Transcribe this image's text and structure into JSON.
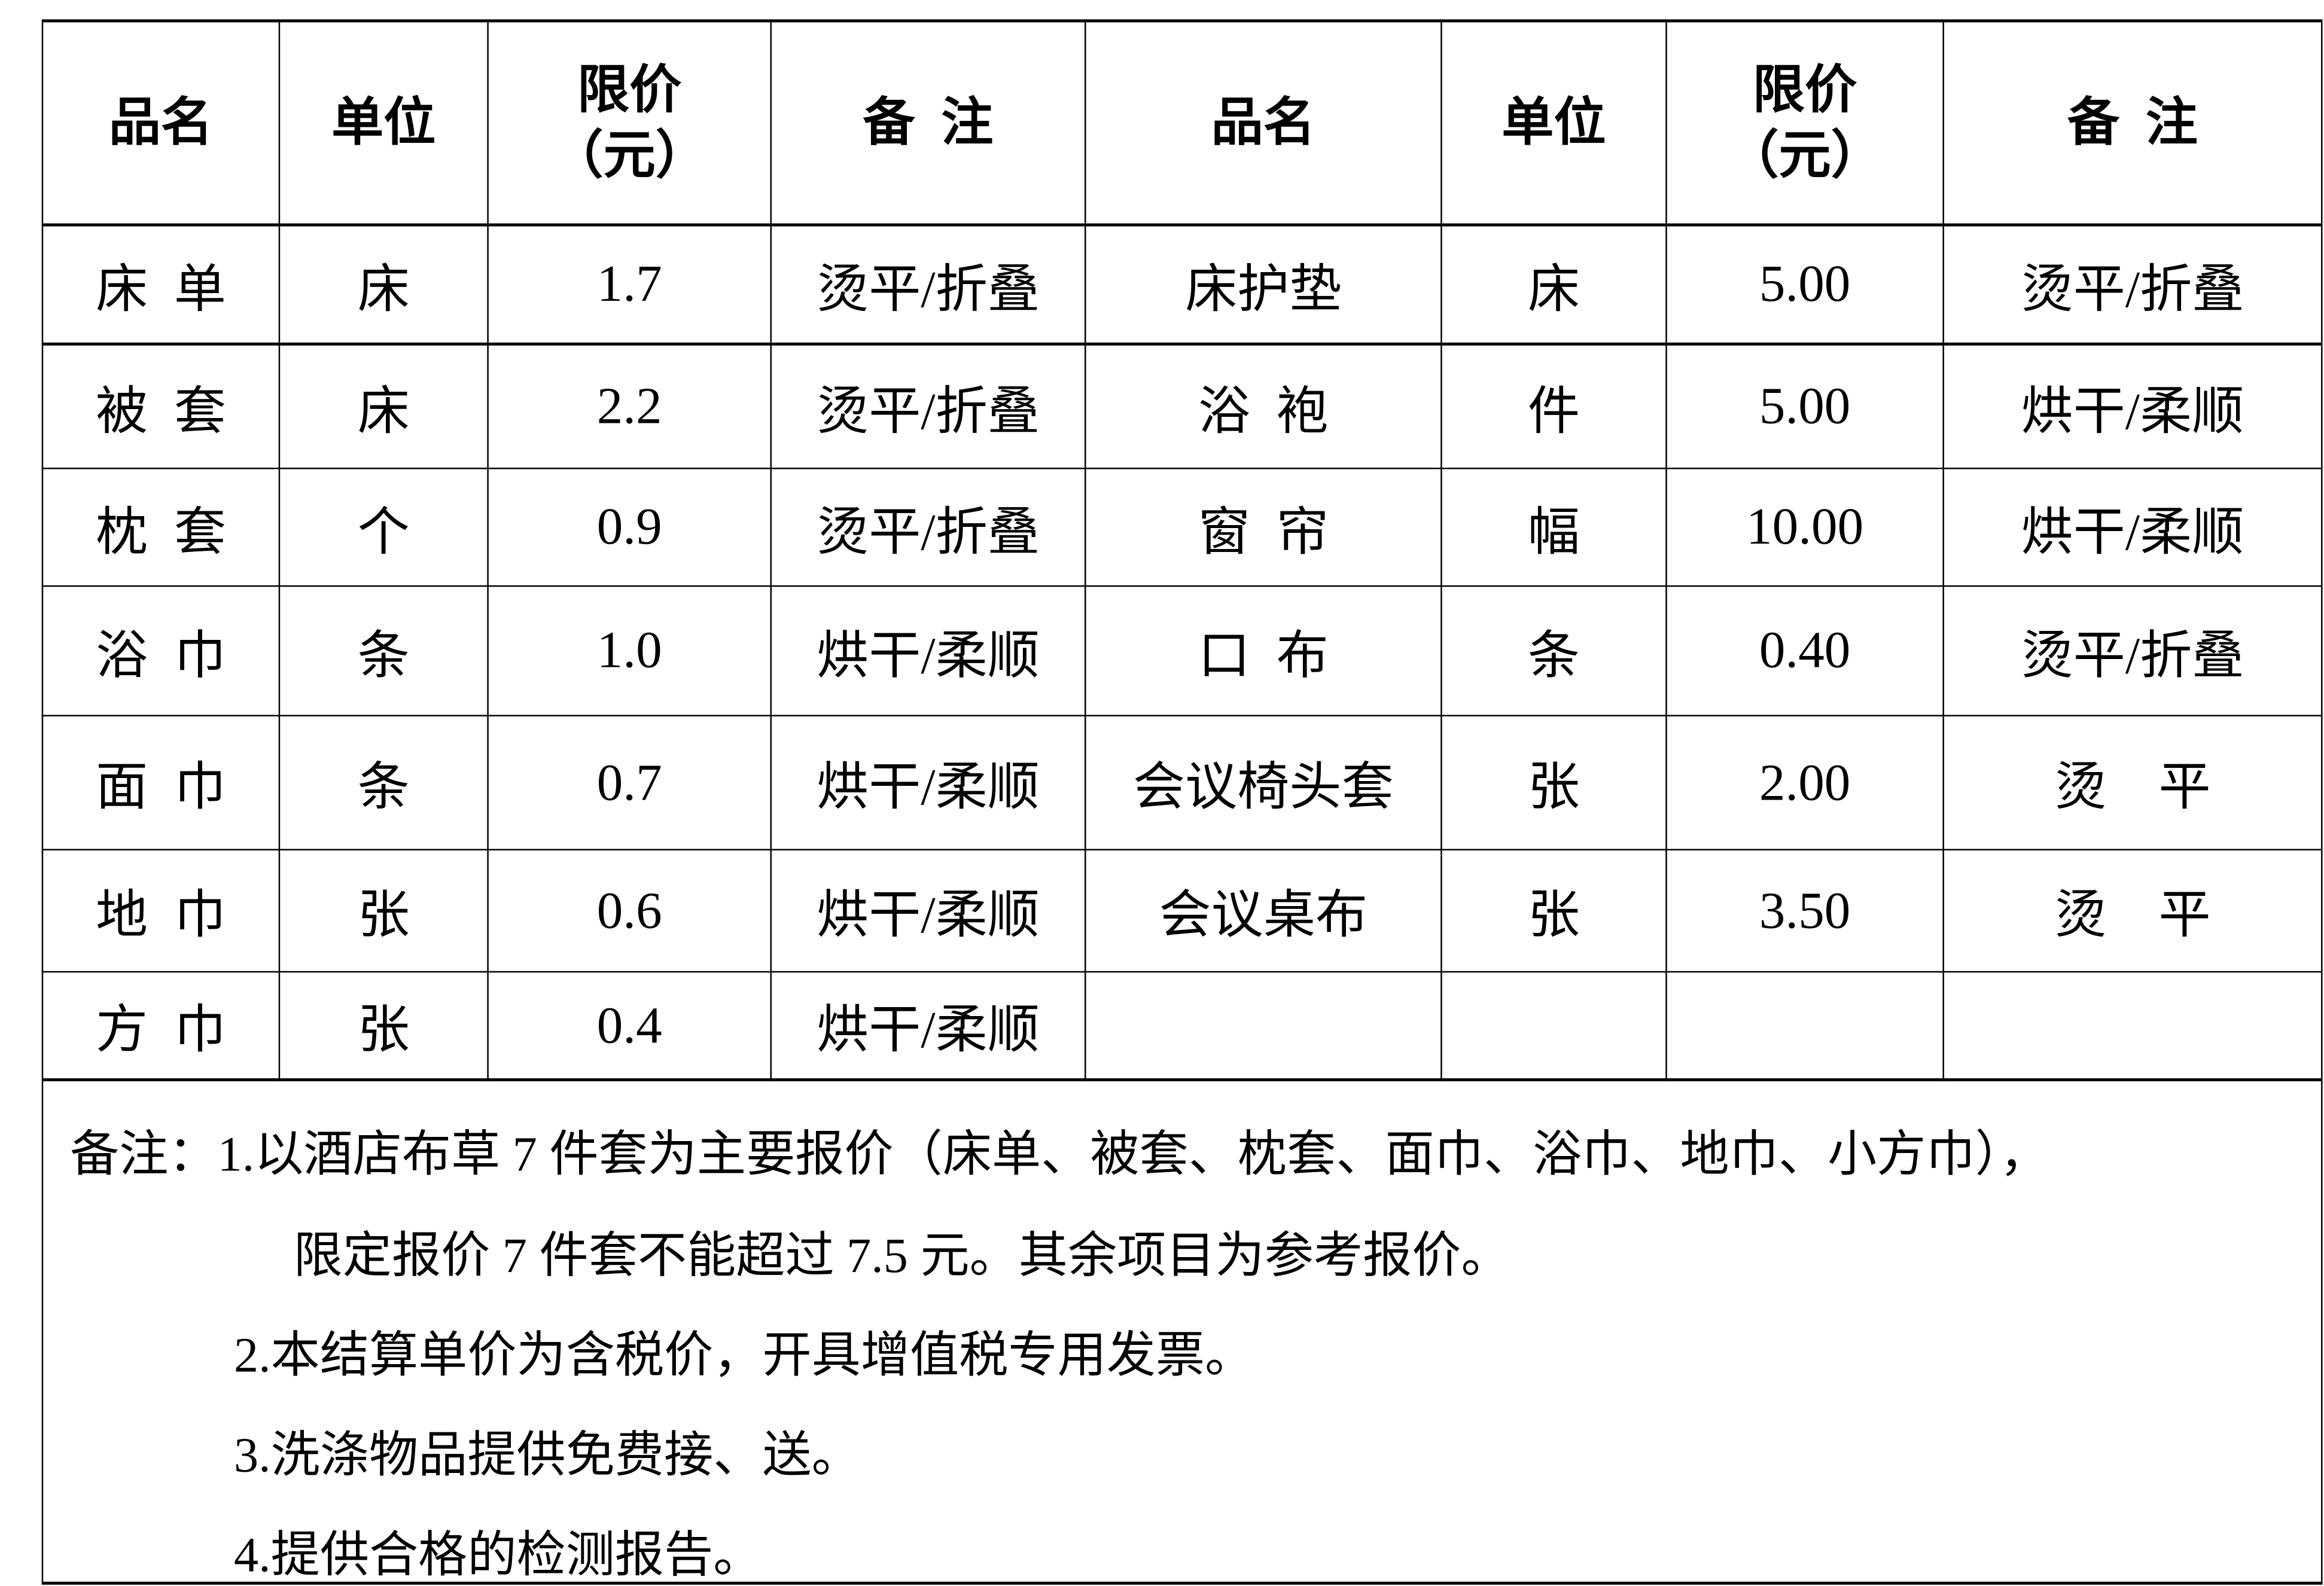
{
  "header": {
    "name": "品名",
    "unit": "单位",
    "price_line1": "限价",
    "price_line2": "（元）",
    "remark": "备  注"
  },
  "left_rows": [
    {
      "name": "床  单",
      "unit": "床",
      "price": "1.7",
      "remark": "烫平/折叠"
    },
    {
      "name": "被  套",
      "unit": "床",
      "price": "2.2",
      "remark": "烫平/折叠"
    },
    {
      "name": "枕  套",
      "unit": "个",
      "price": "0.9",
      "remark": "烫平/折叠"
    },
    {
      "name": "浴  巾",
      "unit": "条",
      "price": "1.0",
      "remark": "烘干/柔顺"
    },
    {
      "name": "面  巾",
      "unit": "条",
      "price": "0.7",
      "remark": "烘干/柔顺"
    },
    {
      "name": "地  巾",
      "unit": "张",
      "price": "0.6",
      "remark": "烘干/柔顺"
    },
    {
      "name": "方  巾",
      "unit": "张",
      "price": "0.4",
      "remark": "烘干/柔顺"
    }
  ],
  "right_rows": [
    {
      "name": "床护垫",
      "unit": "床",
      "price": "5.00",
      "remark": "烫平/折叠"
    },
    {
      "name": "浴  袍",
      "unit": "件",
      "price": "5.00",
      "remark": "烘干/柔顺"
    },
    {
      "name": "窗  帘",
      "unit": "幅",
      "price": "10.00",
      "remark": "烘干/柔顺"
    },
    {
      "name": "口  布",
      "unit": "条",
      "price": "0.40",
      "remark": "烫平/折叠"
    },
    {
      "name": "会议椅头套",
      "unit": "张",
      "price": "2.00",
      "remark": "烫    平"
    },
    {
      "name": "会议桌布",
      "unit": "张",
      "price": "3.50",
      "remark": "烫    平"
    },
    {
      "name": "",
      "unit": "",
      "price": "",
      "remark": ""
    }
  ],
  "notes": {
    "line1": "备注：1.以酒店布草 7 件套为主要报价（床单、被套、枕套、面巾、浴巾、地巾、小方巾），",
    "line2": "限定报价 7 件套不能超过 7.5 元。其余项目为参考报价。",
    "line3": "2.本结算单价为含税价，开具增值税专用发票。",
    "line4": "3.洗涤物品提供免费接、送。",
    "line5": "4.提供合格的检测报告。"
  }
}
